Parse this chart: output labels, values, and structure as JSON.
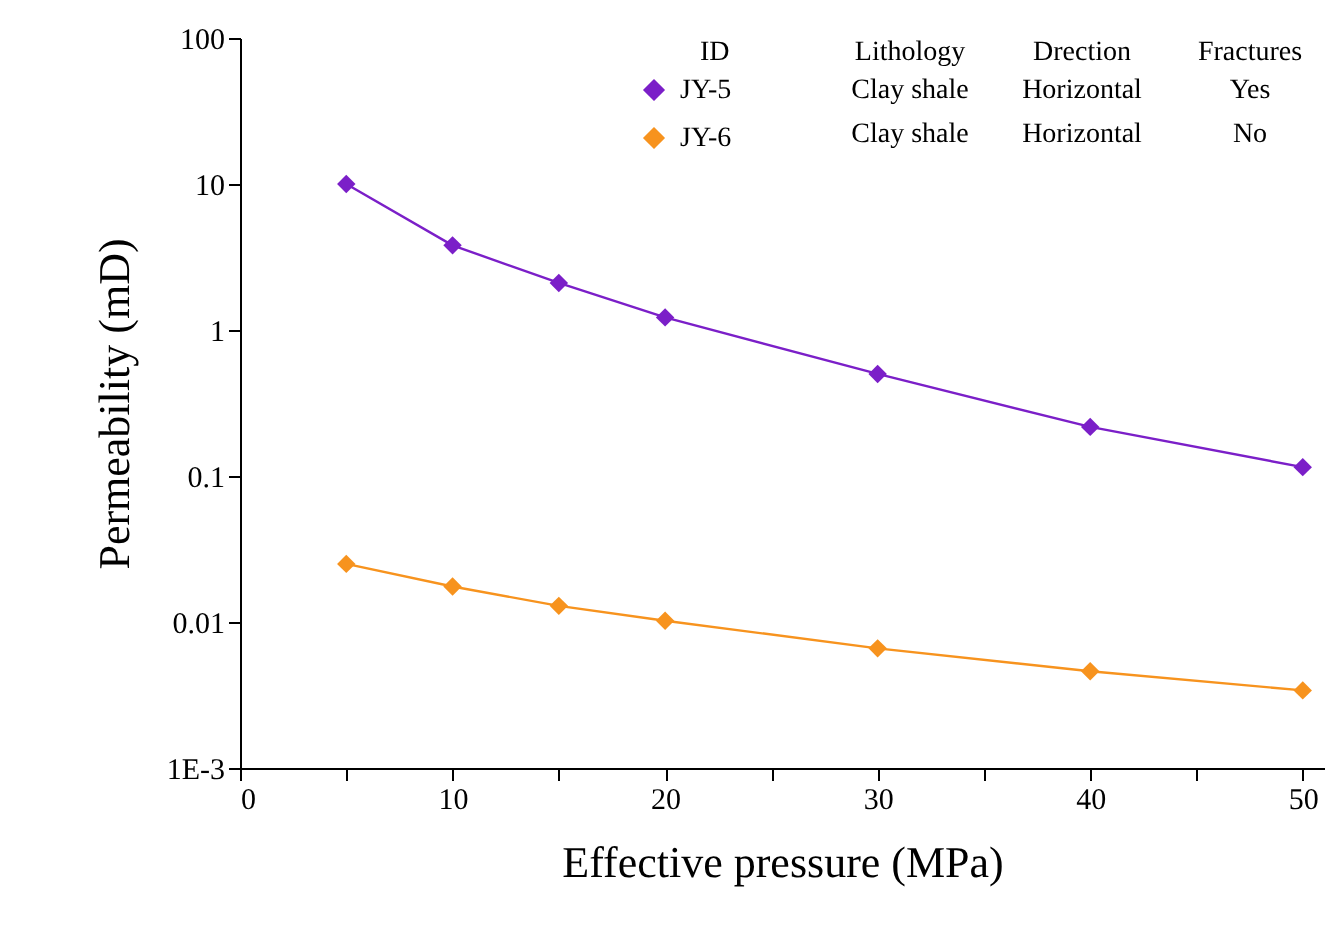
{
  "chart_data": {
    "type": "line",
    "xlabel": "Effective pressure (MPa)",
    "ylabel": "Permeability (mD)",
    "legend_title": "ID",
    "x": [
      5,
      10,
      15,
      20,
      30,
      40,
      50
    ],
    "series": [
      {
        "name": "JY-5",
        "color": "#7b1fc8",
        "values": [
          10,
          3.8,
          2.1,
          1.22,
          0.5,
          0.217,
          0.115
        ]
      },
      {
        "name": "JY-6",
        "color": "#f7931e",
        "values": [
          0.025,
          0.0175,
          0.0129,
          0.0102,
          0.0066,
          0.0046,
          0.0034
        ]
      }
    ],
    "annotations": [
      "Lithology",
      "Drection",
      "Fractures",
      "Clay shale",
      "Horizontal",
      "Yes",
      "Clay shale",
      "Horizontal",
      "No"
    ],
    "xlim": [
      0,
      51
    ],
    "xticks": [
      0,
      {
        "value": 5,
        "label": null
      },
      10,
      {
        "value": 15,
        "label": null
      },
      20,
      {
        "value": 25,
        "label": null
      },
      30,
      {
        "value": 35,
        "label": null
      },
      40,
      {
        "value": 45,
        "label": null
      },
      50
    ],
    "log": true,
    "ylim": [
      0.001,
      100
    ],
    "yticks": [
      {
        "value": 0.001,
        "label": "1E-3"
      },
      0.01,
      0.1,
      1,
      10,
      100
    ],
    "grid": false,
    "legend": "top",
    "marker": "diamond",
    "line_style": "solid"
  }
}
